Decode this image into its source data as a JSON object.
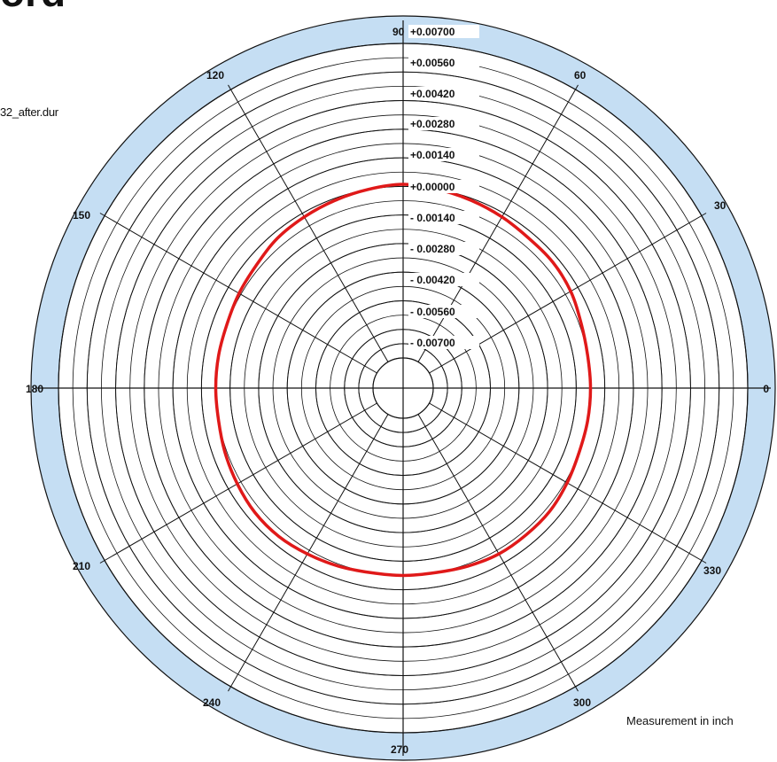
{
  "page": {
    "title_fragment": "ord",
    "file_label": "32_after.dur",
    "measurement_note": "Measurement in inch"
  },
  "colors": {
    "ring_band": "#c5def3",
    "grid": "#111111",
    "trace": "#e01919",
    "background": "#ffffff"
  },
  "chart_data": {
    "type": "polar",
    "angle_unit": "degrees",
    "angle_labels": [
      "0",
      "30",
      "60",
      "90",
      "120",
      "150",
      "180",
      "210",
      "240",
      "270",
      "300",
      "330"
    ],
    "angle_values": [
      0,
      30,
      60,
      90,
      120,
      150,
      180,
      210,
      240,
      270,
      300,
      330
    ],
    "radial_tick_labels": [
      "+0.00700",
      "+0.00560",
      "+0.00420",
      "+0.00280",
      "+0.00140",
      "+0.00000",
      "- 0.00140",
      "- 0.00280",
      "- 0.00420",
      "- 0.00560",
      "- 0.00700"
    ],
    "radial_tick_values": [
      0.007,
      0.0056,
      0.0042,
      0.0028,
      0.0014,
      0.0,
      -0.0014,
      -0.0028,
      -0.0042,
      -0.0056,
      -0.007
    ],
    "radial_range": [
      -0.0084,
      0.007
    ],
    "grid": true,
    "series": [
      {
        "angles": [
          0,
          10,
          20,
          30,
          40,
          50,
          60,
          70,
          80,
          90,
          100,
          110,
          120,
          130,
          140,
          150,
          160,
          170,
          180,
          190,
          200,
          210,
          220,
          230,
          240,
          250,
          260,
          270,
          280,
          290,
          300,
          310,
          320,
          330,
          340,
          350
        ],
        "values": [
          -0.0007,
          -0.0007,
          -0.0006,
          -0.0004,
          -0.0003,
          -0.0003,
          -0.0002,
          -0.0001,
          0.0,
          0.0001,
          0.0,
          -0.0001,
          -0.0002,
          -0.0003,
          -0.0005,
          -0.0006,
          -0.0007,
          -0.0007,
          -0.0007,
          -0.0007,
          -0.0006,
          -0.0005,
          -0.0004,
          -0.0004,
          -0.0005,
          -0.0006,
          -0.0007,
          -0.0007,
          -0.0007,
          -0.0006,
          -0.0005,
          -0.0005,
          -0.0005,
          -0.0006,
          -0.0007,
          -0.0007
        ]
      }
    ]
  }
}
